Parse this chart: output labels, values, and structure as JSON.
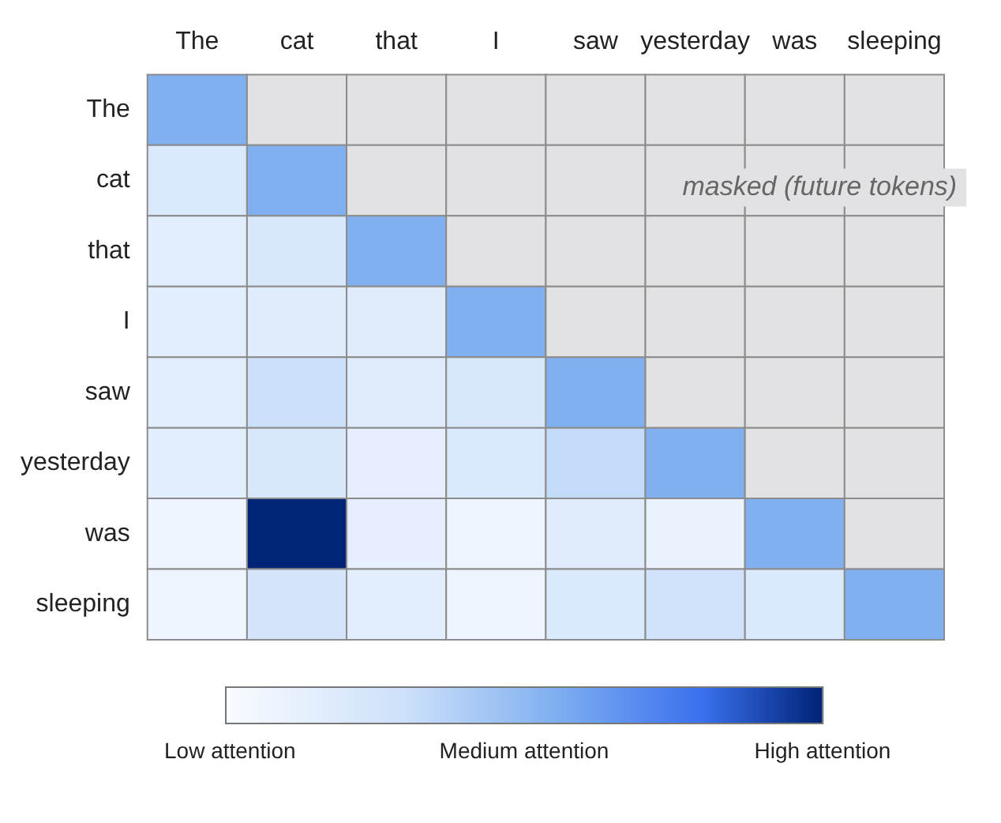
{
  "chart_data": {
    "type": "heatmap",
    "categories": [
      "The",
      "cat",
      "that",
      "I",
      "saw",
      "yesterday",
      "was",
      "sleeping"
    ],
    "y_categories": [
      "The",
      "cat",
      "that",
      "I",
      "saw",
      "yesterday",
      "was",
      "sleeping"
    ],
    "cells": [
      [
        0.55,
        null,
        null,
        null,
        null,
        null,
        null,
        null
      ],
      [
        0.2,
        0.55,
        null,
        null,
        null,
        null,
        null,
        null
      ],
      [
        0.15,
        0.22,
        0.55,
        null,
        null,
        null,
        null,
        null
      ],
      [
        0.15,
        0.17,
        0.17,
        0.55,
        null,
        null,
        null,
        null
      ],
      [
        0.15,
        0.3,
        0.17,
        0.22,
        0.55,
        null,
        null,
        null
      ],
      [
        0.15,
        0.22,
        0.13,
        0.2,
        0.33,
        0.55,
        null,
        null
      ],
      [
        0.07,
        1.0,
        0.13,
        0.07,
        0.17,
        0.1,
        0.55,
        null
      ],
      [
        0.07,
        0.25,
        0.15,
        0.07,
        0.2,
        0.27,
        0.2,
        0.55
      ]
    ],
    "clim": [
      0,
      1
    ],
    "cticks": [
      {
        "value": 0,
        "label": "Low attention"
      },
      {
        "value": 0.5,
        "label": "Medium attention"
      },
      {
        "value": 1,
        "label": "High attention"
      }
    ],
    "annotations": [
      "masked (future tokens)"
    ]
  }
}
